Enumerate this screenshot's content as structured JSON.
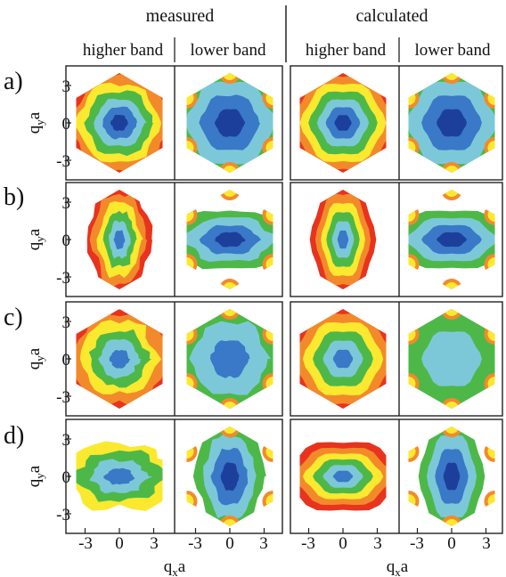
{
  "headers": {
    "measured": "measured",
    "calculated": "calculated",
    "columns": [
      "higher band",
      "lower band",
      "higher band",
      "lower band"
    ]
  },
  "rows": [
    {
      "label": "a)",
      "panels": [
        {
          "kind": "rings",
          "rings": [
            "#e8331e",
            "#f28a2b",
            "#fbe92f",
            "#4db848",
            "#7dc8d8",
            "#3a78c8",
            "#1d3f9c"
          ],
          "stretch": 1.0,
          "noise": 0.12
        },
        {
          "kind": "inverse",
          "rings": [
            "#4db848",
            "#7dc8d8",
            "#3a78c8",
            "#1d3f9c"
          ],
          "stretch": 1.0,
          "noise": 0.06
        },
        {
          "kind": "rings",
          "rings": [
            "#e8331e",
            "#f28a2b",
            "#fbe92f",
            "#4db848",
            "#7dc8d8",
            "#3a78c8",
            "#1d3f9c"
          ],
          "stretch": 1.0,
          "noise": 0.0
        },
        {
          "kind": "inverse",
          "rings": [
            "#4db848",
            "#7dc8d8",
            "#3a78c8",
            "#1d3f9c"
          ],
          "stretch": 1.0,
          "noise": 0.0
        }
      ]
    },
    {
      "label": "b)",
      "panels": [
        {
          "kind": "rings",
          "rings": [
            "#e8331e",
            "#f28a2b",
            "#fbe92f",
            "#4db848",
            "#7dc8d8",
            "#3a78c8"
          ],
          "stretch": 0.55,
          "noise": 0.15
        },
        {
          "kind": "inverse",
          "rings": [
            "#4db848",
            "#7dc8d8",
            "#3a78c8",
            "#1d3f9c"
          ],
          "stretch": 1.9,
          "noise": 0.12
        },
        {
          "kind": "rings",
          "rings": [
            "#e8331e",
            "#f28a2b",
            "#fbe92f",
            "#4db848",
            "#7dc8d8",
            "#3a78c8"
          ],
          "stretch": 0.55,
          "noise": 0.0
        },
        {
          "kind": "inverse",
          "rings": [
            "#4db848",
            "#7dc8d8",
            "#3a78c8",
            "#1d3f9c"
          ],
          "stretch": 1.9,
          "noise": 0.0
        }
      ]
    },
    {
      "label": "c)",
      "panels": [
        {
          "kind": "rings",
          "rings": [
            "#e8331e",
            "#f28a2b",
            "#fbe92f",
            "#4db848",
            "#7dc8d8",
            "#3a78c8"
          ],
          "stretch": 1.0,
          "noise": 0.2
        },
        {
          "kind": "inverse",
          "rings": [
            "#4db848",
            "#7dc8d8",
            "#3a78c8"
          ],
          "stretch": 1.0,
          "noise": 0.12
        },
        {
          "kind": "rings",
          "rings": [
            "#e8331e",
            "#f28a2b",
            "#fbe92f",
            "#4db848",
            "#7dc8d8",
            "#3a78c8"
          ],
          "stretch": 1.0,
          "noise": 0.0
        },
        {
          "kind": "inverse",
          "rings": [
            "#4db848",
            "#7dc8d8"
          ],
          "stretch": 1.0,
          "noise": 0.0
        }
      ]
    },
    {
      "label": "d)",
      "panels": [
        {
          "kind": "rings",
          "rings": [
            "#fbe92f",
            "#4db848",
            "#7dc8d8",
            "#3a78c8"
          ],
          "stretch": 1.7,
          "noise": 0.22
        },
        {
          "kind": "inverse",
          "rings": [
            "#4db848",
            "#7dc8d8",
            "#3a78c8",
            "#1d3f9c"
          ],
          "stretch": 0.6,
          "noise": 0.14
        },
        {
          "kind": "rings",
          "rings": [
            "#e8331e",
            "#f28a2b",
            "#fbe92f",
            "#4db848",
            "#7dc8d8",
            "#3a78c8"
          ],
          "stretch": 1.6,
          "noise": 0.0
        },
        {
          "kind": "inverse",
          "rings": [
            "#4db848",
            "#7dc8d8",
            "#3a78c8",
            "#1d3f9c"
          ],
          "stretch": 0.55,
          "noise": 0.0
        }
      ]
    }
  ],
  "axes": {
    "x_ticks": [
      "-3",
      "0",
      "3"
    ],
    "y_ticks": [
      "3",
      "0",
      "-3"
    ],
    "xlabel_main": "q",
    "xlabel_sub": "x",
    "xlabel_tail": "a",
    "ylabel_main": "q",
    "ylabel_sub": "y",
    "ylabel_tail": "a"
  }
}
